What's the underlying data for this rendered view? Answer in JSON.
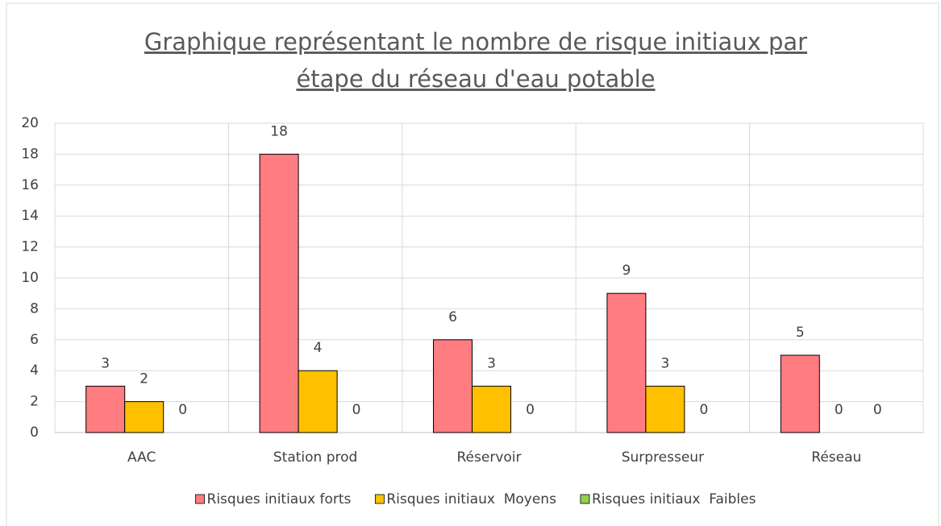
{
  "chart_data": {
    "type": "bar",
    "title": [
      "Graphique représentant le nombre de risque initiaux par",
      "étape du réseau d'eau potable"
    ],
    "categories": [
      "AAC",
      "Station prod",
      "Réservoir",
      "Surpresseur",
      "Réseau"
    ],
    "series": [
      {
        "name": "Risques initiaux forts",
        "color": "#ff7c80",
        "values": [
          3,
          18,
          6,
          9,
          5
        ]
      },
      {
        "name": "Risques initiaux  Moyens",
        "color": "#ffc000",
        "values": [
          2,
          4,
          3,
          3,
          0
        ]
      },
      {
        "name": "Risques initiaux  Faibles",
        "color": "#92d050",
        "values": [
          0,
          0,
          0,
          0,
          0
        ]
      }
    ],
    "ylim": [
      0,
      20
    ],
    "yticks": [
      0,
      2,
      4,
      6,
      8,
      10,
      12,
      14,
      16,
      18,
      20
    ],
    "grid": true,
    "legend": "bottom"
  }
}
